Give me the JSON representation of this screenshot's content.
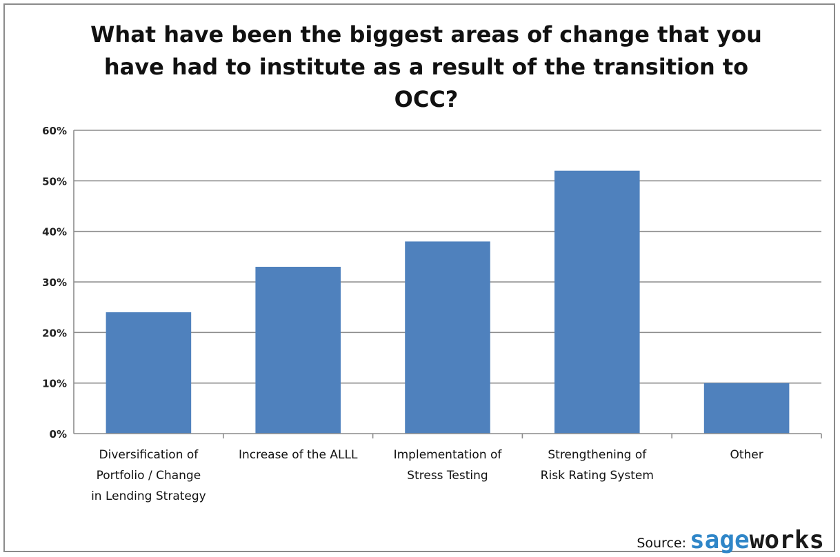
{
  "chart_data": {
    "type": "bar",
    "title_lines": [
      "What have been the biggest areas of change that you",
      "have had to institute as a result of the transition to",
      "OCC?"
    ],
    "categories": [
      [
        "Diversification of",
        "Portfolio / Change",
        "in Lending Strategy"
      ],
      [
        "Increase of the ALLL"
      ],
      [
        "Implementation of",
        "Stress Testing"
      ],
      [
        "Strengthening of",
        "Risk Rating System"
      ],
      [
        "Other"
      ]
    ],
    "values": [
      24,
      33,
      38,
      52,
      10
    ],
    "ylim": [
      0,
      60
    ],
    "yticks": [
      0,
      10,
      20,
      30,
      40,
      50,
      60
    ],
    "ytick_labels": [
      "0%",
      "10%",
      "20%",
      "30%",
      "40%",
      "50%",
      "60%"
    ],
    "xlabel": "",
    "ylabel": "",
    "grid": true,
    "legend": "none",
    "bar_color": "#4f81bd"
  },
  "source": {
    "label": "Source:",
    "brand_part1": "sage",
    "brand_part2": "works",
    "brand_color_1": "#2f86c8",
    "brand_color_2": "#1a1a1a"
  }
}
